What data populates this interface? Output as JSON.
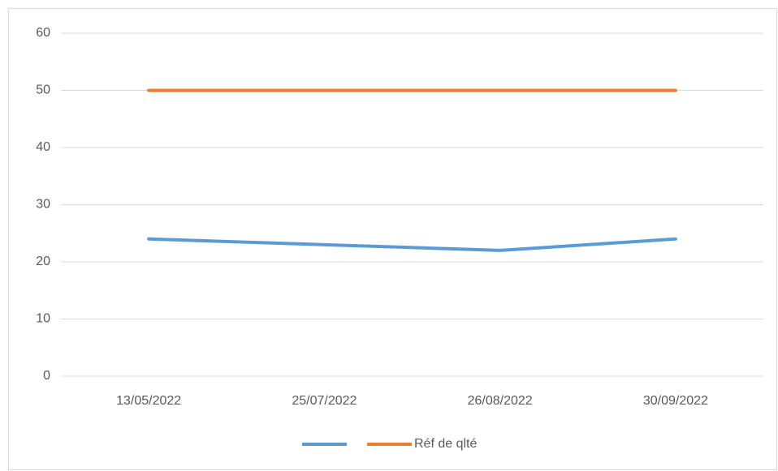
{
  "chart_data": {
    "type": "line",
    "categories": [
      "13/05/2022",
      "25/07/2022",
      "26/08/2022",
      "30/09/2022"
    ],
    "series": [
      {
        "color": "#5b9bd5",
        "values": [
          24,
          23,
          22,
          24
        ]
      },
      {
        "name": "Réf de qlté",
        "color": "#ed7d31",
        "values": [
          50,
          50,
          50,
          50
        ]
      }
    ],
    "ylim": [
      0,
      60
    ],
    "yticks": [
      0,
      10,
      20,
      30,
      40,
      50,
      60
    ],
    "grid": true,
    "legend": "bottom"
  }
}
